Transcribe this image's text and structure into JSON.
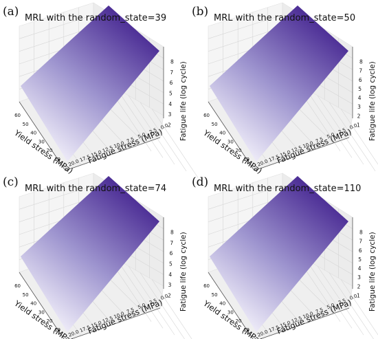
{
  "chart_data": [
    {
      "type": "surface3d",
      "panel_label": "(a)",
      "title": "MRL with the random_state=39",
      "xlabel": "Yield stress (MPa)",
      "ylabel": "Fatigue stress (MPa)",
      "zlabel": "Fatigue life (log cycle)",
      "x_ticks": [
        "10",
        "20",
        "30",
        "40",
        "50",
        "60"
      ],
      "y_ticks": [
        "20.0",
        "17.5",
        "15.0",
        "12.5",
        "10.0",
        "7.5",
        "5.0",
        "2.5",
        "0.0"
      ],
      "z_ticks": [
        "2",
        "3",
        "4",
        "5",
        "6",
        "7",
        "8"
      ],
      "xlim": [
        10,
        60
      ],
      "ylim": [
        0,
        20
      ],
      "zlim": [
        2,
        8
      ],
      "grid": true
    },
    {
      "type": "surface3d",
      "panel_label": "(b)",
      "title": "MRL with the random_state=50",
      "xlabel": "Yield stress (MPa)",
      "ylabel": "Fatigue stress (MPa)",
      "zlabel": "Fatigue life (log cycle)",
      "x_ticks": [
        "10",
        "20",
        "30",
        "40",
        "50",
        "60"
      ],
      "y_ticks": [
        "20.0",
        "17.5",
        "15.0",
        "12.5",
        "10.0",
        "7.5",
        "5.0",
        "2.5",
        "0.0"
      ],
      "z_ticks": [
        "1",
        "2",
        "3",
        "4",
        "5",
        "6",
        "7",
        "8"
      ],
      "xlim": [
        10,
        60
      ],
      "ylim": [
        0,
        20
      ],
      "zlim": [
        1,
        8
      ],
      "grid": true
    },
    {
      "type": "surface3d",
      "panel_label": "(c)",
      "title": "MRL with the random_state=74",
      "xlabel": "Yield stress (MPa)",
      "ylabel": "Fatigue stress (MPa)",
      "zlabel": "Fatigue life (log cycle)",
      "x_ticks": [
        "10",
        "20",
        "30",
        "40",
        "50",
        "60"
      ],
      "y_ticks": [
        "20.0",
        "17.5",
        "15.0",
        "12.5",
        "10.0",
        "7.5",
        "5.0",
        "2.5",
        "0.0"
      ],
      "z_ticks": [
        "2",
        "3",
        "4",
        "5",
        "6",
        "7",
        "8"
      ],
      "xlim": [
        10,
        60
      ],
      "ylim": [
        0,
        20
      ],
      "zlim": [
        2,
        8
      ],
      "grid": true
    },
    {
      "type": "surface3d",
      "panel_label": "(d)",
      "title": "MRL with the random_state=110",
      "xlabel": "Yield stress (MPa)",
      "ylabel": "Fatigue stress (MPa)",
      "zlabel": "Fatigue life (log cycle)",
      "x_ticks": [
        "10",
        "20",
        "30",
        "40",
        "50",
        "60"
      ],
      "y_ticks": [
        "20.0",
        "17.5",
        "15.0",
        "12.5",
        "10.0",
        "7.5",
        "5.0",
        "2.5",
        "0.0"
      ],
      "z_ticks": [
        "1",
        "2",
        "3",
        "4",
        "5",
        "6",
        "7",
        "8"
      ],
      "xlim": [
        10,
        60
      ],
      "ylim": [
        0,
        20
      ],
      "zlim": [
        1,
        8
      ],
      "grid": true
    }
  ],
  "colors": {
    "surface_high": "#3f1d8c",
    "surface_low": "#f4f2fb",
    "pane_light": "#f5f5f5",
    "pane_dark": "#ececec",
    "grid": "#d6d6d6",
    "text": "#111111"
  }
}
